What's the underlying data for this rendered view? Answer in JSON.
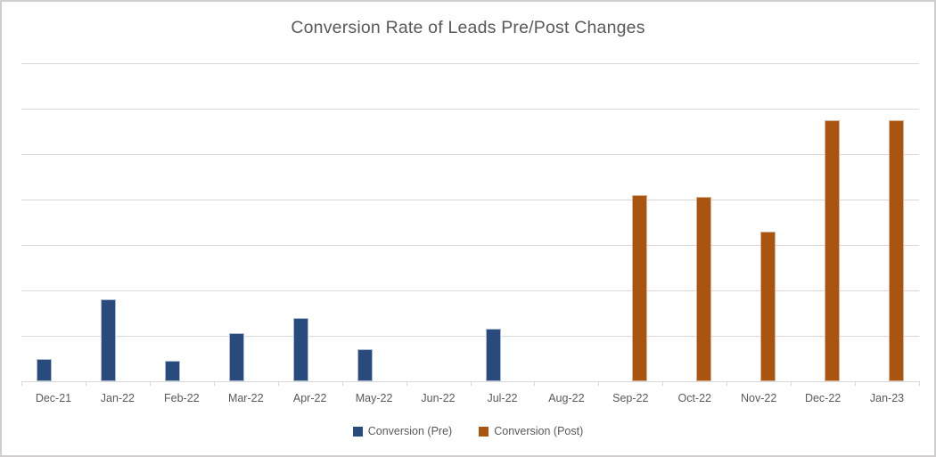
{
  "chart_data": {
    "type": "bar",
    "title": "Conversion Rate of Leads Pre/Post Changes",
    "categories": [
      "Dec-21",
      "Jan-22",
      "Feb-22",
      "Mar-22",
      "Apr-22",
      "May-22",
      "Jun-22",
      "Jul-22",
      "Aug-22",
      "Sep-22",
      "Oct-22",
      "Nov-22",
      "Dec-22",
      "Jan-23"
    ],
    "series": [
      {
        "name": "Conversion (Pre)",
        "color": "#294a7c",
        "edge_color": "#aebcd2",
        "values": [
          0.5,
          1.8,
          0.45,
          1.05,
          1.4,
          0.7,
          0,
          1.15,
          0,
          0,
          0,
          0,
          0,
          0
        ]
      },
      {
        "name": "Conversion (Post)",
        "color": "#a9540f",
        "edge_color": "#d8b294",
        "values": [
          0,
          0,
          0,
          0,
          0,
          0,
          0,
          0,
          0,
          4.1,
          4.05,
          3.3,
          5.75,
          5.75
        ]
      }
    ],
    "xlabel": "",
    "ylabel": "",
    "ylim": [
      0,
      7
    ],
    "gridline_interval": 1,
    "gridline_count": 7,
    "y_axis_labels_visible": false,
    "grid": true,
    "legend_position": "bottom",
    "colors": {
      "gridline": "#d9d9d9",
      "axis_line": "#d9d9d9",
      "text": "#595959",
      "frame_border": "#d0cece",
      "background": "#ffffff"
    }
  }
}
